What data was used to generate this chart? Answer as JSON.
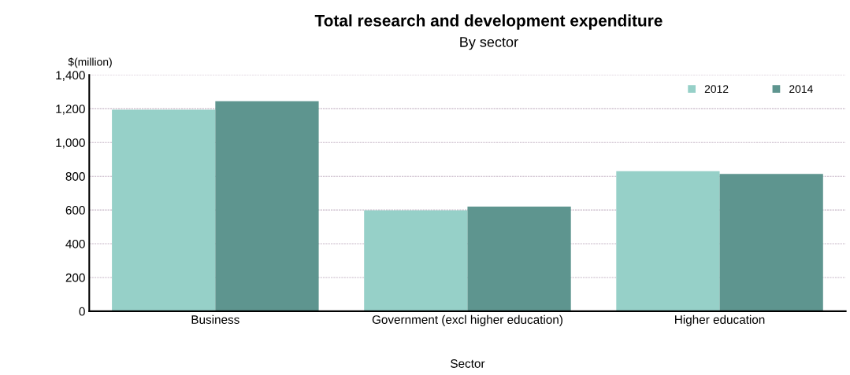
{
  "chart_data": {
    "type": "bar",
    "title": "Total research and development expenditure",
    "subtitle": "By sector",
    "ylabel": "$(million)",
    "xlabel": "Sector",
    "categories": [
      "Business",
      "Government (excl higher education)",
      "Higher education"
    ],
    "series": [
      {
        "name": "2012",
        "color": "#96d0c8",
        "values": [
          1195,
          598,
          830
        ]
      },
      {
        "name": "2014",
        "color": "#5e958f",
        "values": [
          1245,
          620,
          814
        ]
      }
    ],
    "ylim": [
      0,
      1400
    ],
    "yticks": [
      0,
      {
        "value": 200,
        "label": "200"
      },
      {
        "value": 400,
        "label": "400"
      },
      {
        "value": 600,
        "label": "600"
      },
      {
        "value": 800,
        "label": "800"
      },
      {
        "value": 1000,
        "label": "1,000"
      },
      {
        "value": 1200,
        "label": "1,200"
      },
      {
        "value": 1400,
        "label": "1,400"
      }
    ],
    "grid": "y",
    "legend": "top right"
  }
}
